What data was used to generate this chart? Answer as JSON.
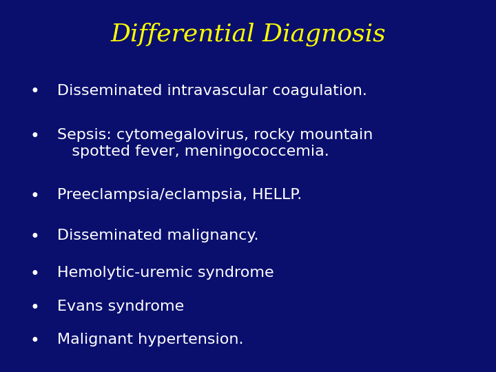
{
  "title": "Differential Diagnosis",
  "title_color": "#FFFF00",
  "title_fontsize": 26,
  "background_color": "#0A0F6E",
  "bullet_color": "#FFFFFF",
  "bullet_fontsize": 16,
  "bullet_char": "•",
  "bullets": [
    "Disseminated intravascular coagulation.",
    "Sepsis: cytomegalovirus, rocky mountain\n   spotted fever, meningococcemia.",
    "Preeclampsia/eclampsia, HELLP.",
    "Disseminated malignancy.",
    "Hemolytic-uremic syndrome",
    "Evans syndrome",
    "Malignant hypertension."
  ],
  "figsize": [
    7.2,
    5.4
  ],
  "dpi": 100
}
